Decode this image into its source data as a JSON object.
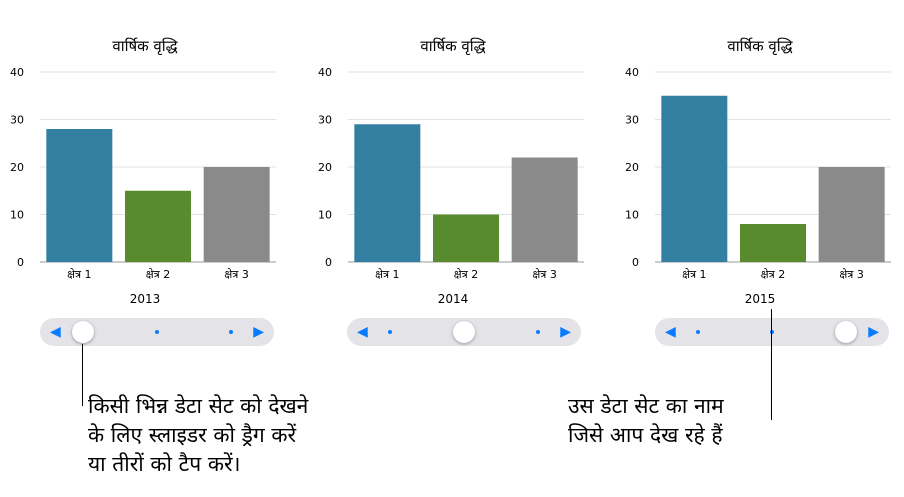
{
  "chart_data": [
    {
      "type": "bar",
      "title": "वार्षिक वृद्धि",
      "set_name": "2013",
      "categories": [
        "क्षेत्र 1",
        "क्षेत्र 2",
        "क्षेत्र 3"
      ],
      "values": [
        28,
        15,
        20
      ],
      "ylim": [
        0,
        40
      ],
      "yticks": [
        "0",
        "10",
        "20",
        "30",
        "40"
      ],
      "colors": [
        "#337fa2",
        "#578b2e",
        "#8a8a8a"
      ],
      "grid": true,
      "slider_position": 0
    },
    {
      "type": "bar",
      "title": "वार्षिक वृद्धि",
      "set_name": "2014",
      "categories": [
        "क्षेत्र 1",
        "क्षेत्र 2",
        "क्षेत्र 3"
      ],
      "values": [
        29,
        10,
        22
      ],
      "ylim": [
        0,
        40
      ],
      "yticks": [
        "0",
        "10",
        "20",
        "30",
        "40"
      ],
      "colors": [
        "#337fa2",
        "#578b2e",
        "#8a8a8a"
      ],
      "grid": true,
      "slider_position": 0.5
    },
    {
      "type": "bar",
      "title": "वार्षिक वृद्धि",
      "set_name": "2015",
      "categories": [
        "क्षेत्र 1",
        "क्षेत्र 2",
        "क्षेत्र 3"
      ],
      "values": [
        35,
        8,
        20
      ],
      "ylim": [
        0,
        40
      ],
      "yticks": [
        "0",
        "10",
        "20",
        "30",
        "40"
      ],
      "colors": [
        "#337fa2",
        "#578b2e",
        "#8a8a8a"
      ],
      "grid": true,
      "slider_position": 1
    }
  ],
  "slider": {
    "left_arrow": "◀",
    "right_arrow": "▶",
    "accent": "#0a7aff"
  },
  "callouts": {
    "left": "किसी भिन्न डेटा सेट को देखने\nके लिए स्लाइडर को ड्रैग करें\nया तीरों को टैप करें।",
    "right": "उस डेटा सेट का नाम\nजिसे आप देख रहे हैं"
  }
}
